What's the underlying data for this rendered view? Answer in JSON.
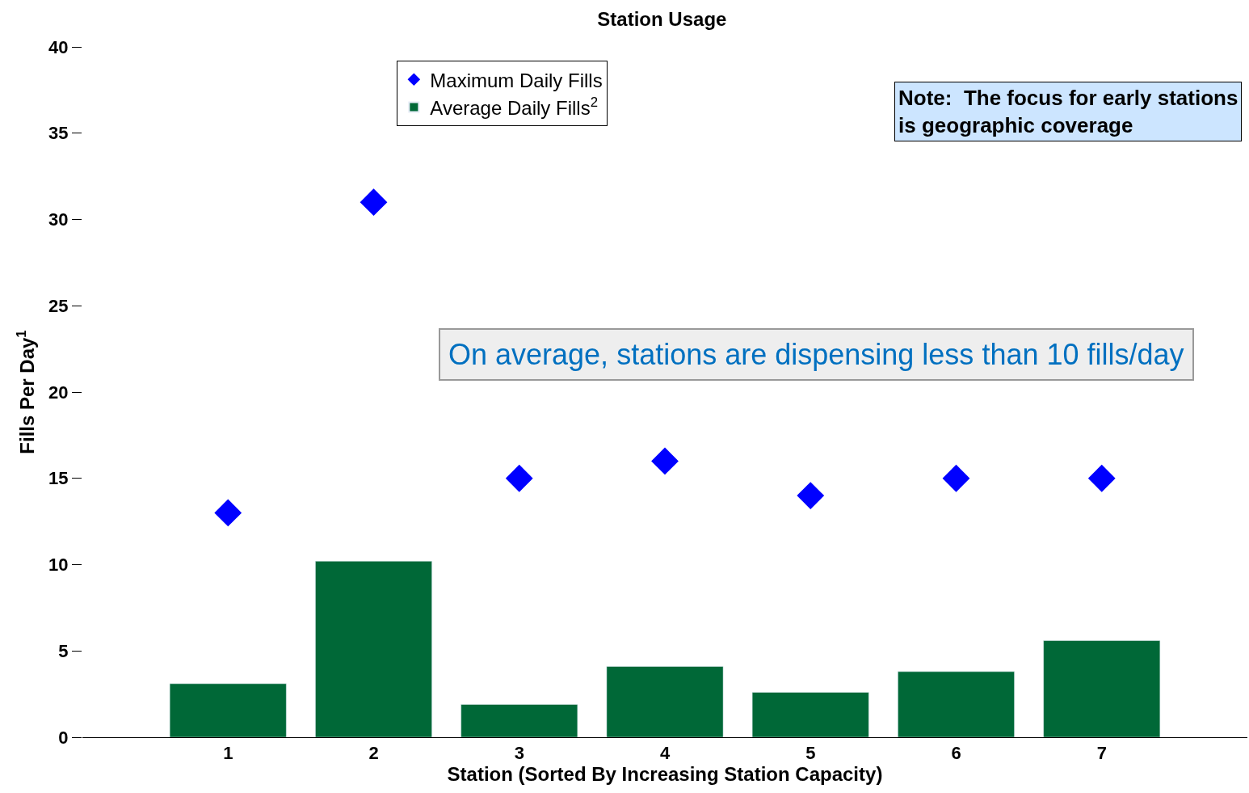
{
  "chart_data": {
    "type": "bar",
    "title": "Station Usage",
    "xlabel": "Station (Sorted By Increasing Station Capacity)",
    "ylabel": "Fills Per Day$^{1}$",
    "x": [
      1,
      2,
      3,
      4,
      5,
      6,
      7
    ],
    "series": [
      {
        "name": "Maximum Daily Fills",
        "type": "scatter",
        "marker": "diamond",
        "color": "#0000ff",
        "values": [
          13,
          31,
          15,
          16,
          14,
          15,
          15
        ]
      },
      {
        "name": "Average Daily Fills$^{2}$",
        "color": "#006837",
        "values": [
          3.1,
          10.2,
          1.9,
          4.1,
          2.6,
          3.8,
          5.6
        ]
      }
    ],
    "xlim": [
      0,
      8
    ],
    "xticks": [
      1,
      2,
      3,
      4,
      5,
      6,
      7
    ],
    "ylim": [
      0,
      40
    ],
    "yticks": [
      0,
      5,
      10,
      15,
      20,
      25,
      30,
      35,
      40
    ],
    "legend": "top left",
    "annotations": [
      "Note:  The focus for early stations\nis geographic coverage",
      "On average, stations are dispensing less than 10 fills/day"
    ]
  }
}
